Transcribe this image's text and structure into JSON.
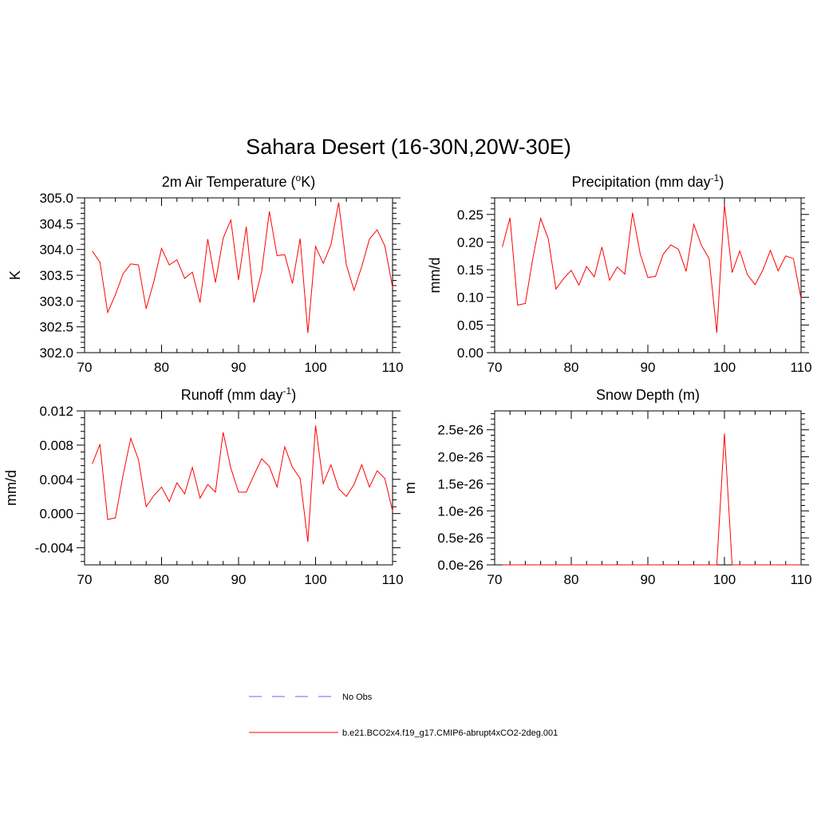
{
  "title": "Sahara Desert (16-30N,20W-30E)",
  "colors": {
    "model": "#ff0000",
    "obs": "#9999ff"
  },
  "legend": [
    {
      "label": "No Obs",
      "style": "dashed",
      "color": "#9999ff"
    },
    {
      "label": "b.e21.BCO2x4.f19_g17.CMIP6-abrupt4xCO2-2deg.001",
      "style": "solid",
      "color": "#ff0000"
    }
  ],
  "chart_data": [
    {
      "type": "line",
      "title": "2m Air Temperature (",
      "title_sup": "o",
      "title_end": "K)",
      "xlabel": "",
      "ylabel": "K",
      "xlim": [
        70,
        110
      ],
      "ylim": [
        302.0,
        305.0
      ],
      "xticks": [
        70,
        80,
        90,
        100,
        110
      ],
      "xtick_labels": [
        "70",
        "80",
        "90",
        "100",
        "110"
      ],
      "yticks": [
        302.0,
        302.5,
        303.0,
        303.5,
        304.0,
        304.5,
        305.0
      ],
      "ytick_labels": [
        "302.0",
        "302.5",
        "303.0",
        "303.5",
        "304.0",
        "304.5",
        "305.0"
      ],
      "x": [
        71,
        72,
        73,
        74,
        75,
        76,
        77,
        78,
        79,
        80,
        81,
        82,
        83,
        84,
        85,
        86,
        87,
        88,
        89,
        90,
        91,
        92,
        93,
        94,
        95,
        96,
        97,
        98,
        99,
        100,
        101,
        102,
        103,
        104,
        105,
        106,
        107,
        108,
        109,
        110
      ],
      "series": [
        {
          "values": [
            303.97,
            303.75,
            302.78,
            303.12,
            303.53,
            303.72,
            303.7,
            302.85,
            303.38,
            304.02,
            303.7,
            303.8,
            303.44,
            303.56,
            302.97,
            304.2,
            303.36,
            304.22,
            304.57,
            303.41,
            304.44,
            302.97,
            303.57,
            304.74,
            303.88,
            303.9,
            303.34,
            304.21,
            302.38,
            304.06,
            303.73,
            304.09,
            304.91,
            303.7,
            303.21,
            303.67,
            304.2,
            304.38,
            304.07,
            303.27
          ]
        }
      ]
    },
    {
      "type": "line",
      "title": "Precipitation (mm day",
      "title_sup": "-1",
      "title_end": ")",
      "xlabel": "",
      "ylabel": "mm/d",
      "xlim": [
        70,
        110
      ],
      "ylim": [
        0.0,
        0.28
      ],
      "xticks": [
        70,
        80,
        90,
        100,
        110
      ],
      "xtick_labels": [
        "70",
        "80",
        "90",
        "100",
        "110"
      ],
      "yticks": [
        0.0,
        0.05,
        0.1,
        0.15,
        0.2,
        0.25
      ],
      "ytick_labels": [
        "0.00",
        "0.05",
        "0.10",
        "0.15",
        "0.20",
        "0.25"
      ],
      "x": [
        71,
        72,
        73,
        74,
        75,
        76,
        77,
        78,
        79,
        80,
        81,
        82,
        83,
        84,
        85,
        86,
        87,
        88,
        89,
        90,
        91,
        92,
        93,
        94,
        95,
        96,
        97,
        98,
        99,
        100,
        101,
        102,
        103,
        104,
        105,
        106,
        107,
        108,
        109,
        110
      ],
      "series": [
        {
          "values": [
            0.191,
            0.244,
            0.086,
            0.089,
            0.172,
            0.243,
            0.206,
            0.115,
            0.134,
            0.149,
            0.122,
            0.156,
            0.137,
            0.191,
            0.131,
            0.155,
            0.142,
            0.253,
            0.179,
            0.136,
            0.138,
            0.178,
            0.195,
            0.187,
            0.147,
            0.232,
            0.194,
            0.17,
            0.036,
            0.268,
            0.145,
            0.184,
            0.141,
            0.123,
            0.149,
            0.185,
            0.148,
            0.175,
            0.17,
            0.098
          ]
        }
      ]
    },
    {
      "type": "line",
      "title": "Runoff (mm day",
      "title_sup": "-1",
      "title_end": ")",
      "xlabel": "",
      "ylabel": "mm/d",
      "xlim": [
        70,
        110
      ],
      "ylim": [
        -0.006,
        0.012
      ],
      "xticks": [
        70,
        80,
        90,
        100,
        110
      ],
      "xtick_labels": [
        "70",
        "80",
        "90",
        "100",
        "110"
      ],
      "yticks": [
        -0.004,
        0.0,
        0.004,
        0.008,
        0.012
      ],
      "ytick_labels": [
        "-0.004",
        "0.000",
        "0.004",
        "0.008",
        "0.012"
      ],
      "x": [
        71,
        72,
        73,
        74,
        75,
        76,
        77,
        78,
        79,
        80,
        81,
        82,
        83,
        84,
        85,
        86,
        87,
        88,
        89,
        90,
        91,
        92,
        93,
        94,
        95,
        96,
        97,
        98,
        99,
        100,
        101,
        102,
        103,
        104,
        105,
        106,
        107,
        108,
        109,
        110
      ],
      "series": [
        {
          "values": [
            0.0058,
            0.0081,
            -0.0007,
            -0.0005,
            0.0045,
            0.0088,
            0.0063,
            0.0008,
            0.0021,
            0.0031,
            0.0014,
            0.0036,
            0.0023,
            0.0054,
            0.0018,
            0.0034,
            0.0025,
            0.0095,
            0.0053,
            0.0025,
            0.0025,
            0.0045,
            0.0064,
            0.0055,
            0.0031,
            0.0078,
            0.0054,
            0.0041,
            -0.0033,
            0.0103,
            0.0035,
            0.0057,
            0.0029,
            0.002,
            0.0034,
            0.0057,
            0.0031,
            0.005,
            0.0041,
            0.0003
          ]
        }
      ]
    },
    {
      "type": "line",
      "title": "Snow Depth (m)",
      "title_sup": "",
      "title_end": "",
      "xlabel": "",
      "ylabel": "m",
      "xlim": [
        70,
        110
      ],
      "ylim": [
        0.0,
        2.85e-26
      ],
      "xticks": [
        70,
        80,
        90,
        100,
        110
      ],
      "xtick_labels": [
        "70",
        "80",
        "90",
        "100",
        "110"
      ],
      "yticks": [
        0.0,
        5e-27,
        1e-26,
        1.5e-26,
        2e-26,
        2.5e-26
      ],
      "ytick_labels": [
        "0.0e-26",
        "0.5e-26",
        "1.0e-26",
        "1.5e-26",
        "2.0e-26",
        "2.5e-26"
      ],
      "x": [
        71,
        72,
        73,
        74,
        75,
        76,
        77,
        78,
        79,
        80,
        81,
        82,
        83,
        84,
        85,
        86,
        87,
        88,
        89,
        90,
        91,
        92,
        93,
        94,
        95,
        96,
        97,
        98,
        99,
        100,
        101,
        102,
        103,
        104,
        105,
        106,
        107,
        108,
        109,
        110
      ],
      "series": [
        {
          "values": [
            0,
            0,
            0,
            0,
            0,
            0,
            0,
            0,
            0,
            0,
            0,
            0,
            0,
            0,
            0,
            0,
            0,
            0,
            0,
            0,
            0,
            0,
            0,
            0,
            0,
            0,
            0,
            0,
            0,
            2.43e-26,
            0,
            0,
            0,
            0,
            0,
            0,
            0,
            0,
            0,
            0
          ]
        }
      ]
    }
  ]
}
